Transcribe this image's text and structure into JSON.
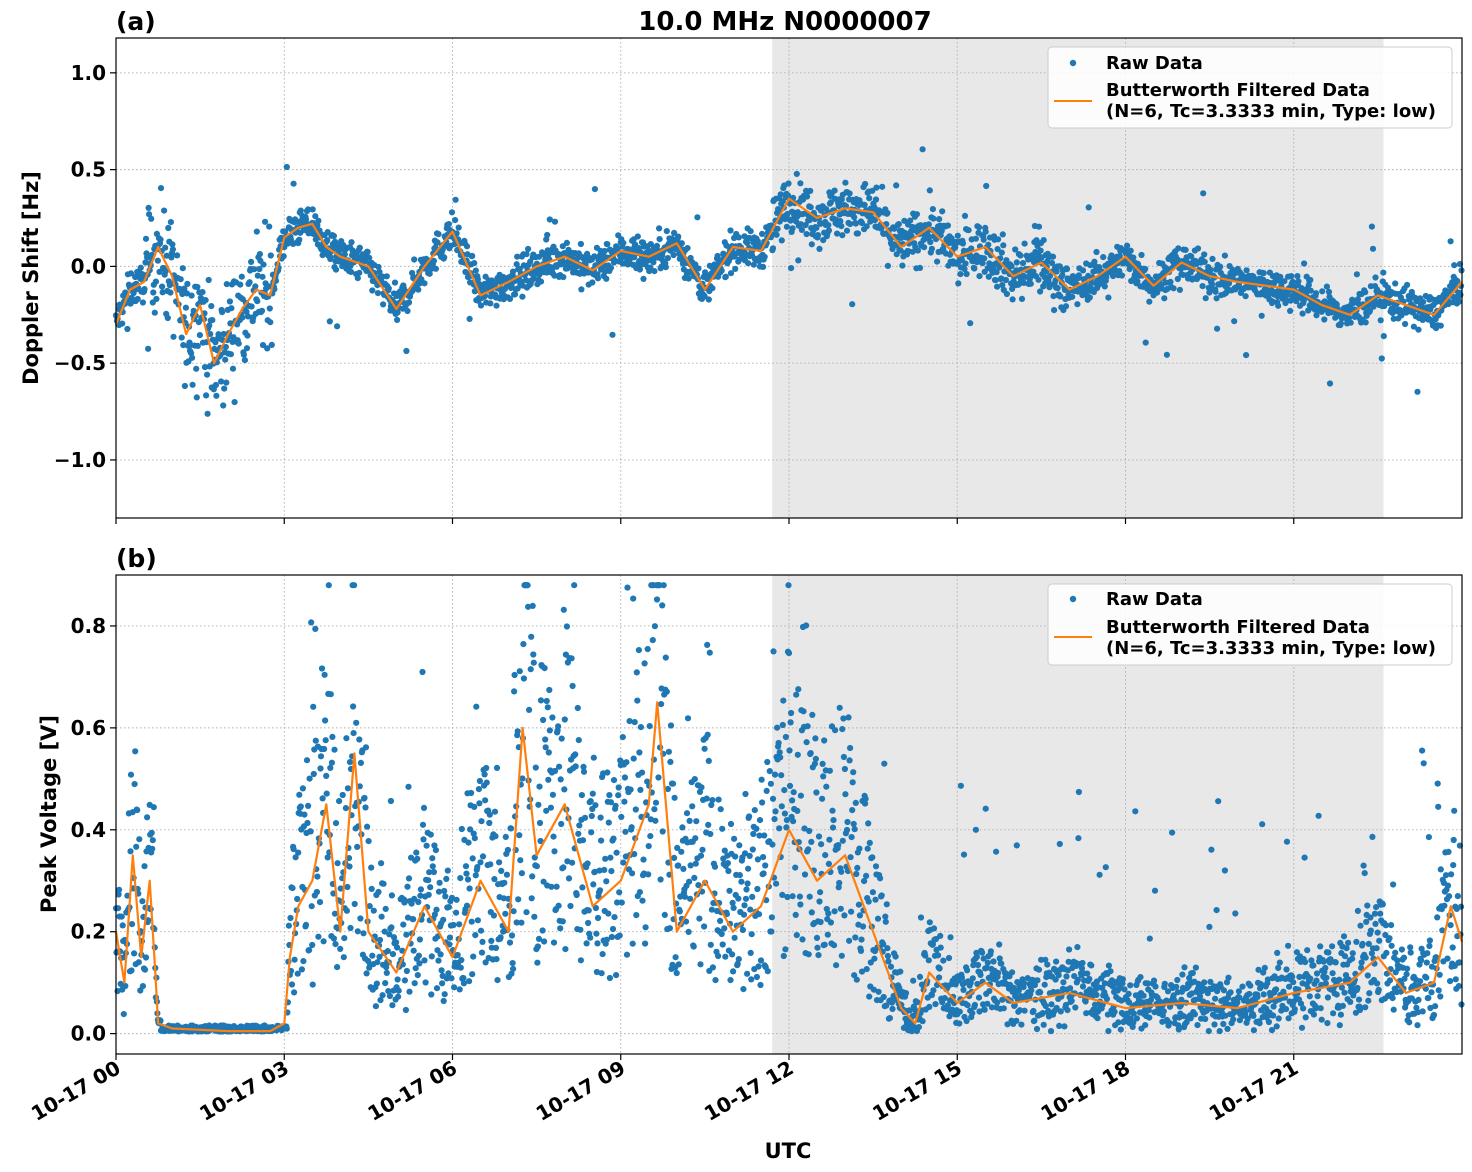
{
  "figure": {
    "title": "10.0 MHz N0000007",
    "xlabel": "UTC",
    "x_tick_labels": [
      "10-17 00",
      "10-17 03",
      "10-17 06",
      "10-17 09",
      "10-17 12",
      "10-17 15",
      "10-17 18",
      "10-17 21"
    ],
    "colors": {
      "raw": "#1f77b4",
      "filtered": "#ff7f0e",
      "shade": "#e8e8e8"
    }
  },
  "chart_data": [
    {
      "type": "scatter",
      "panel_label": "(a)",
      "ylabel": "Doppler Shift [Hz]",
      "xlim_hours": [
        0,
        24
      ],
      "ylim": [
        -1.3,
        1.18
      ],
      "y_ticks": [
        1.0,
        0.5,
        0.0,
        -0.5,
        -1.0
      ],
      "y_tick_labels": [
        "1.0",
        "0.5",
        "0.0",
        "−0.5",
        "−1.0"
      ],
      "shaded_span_hours": [
        11.7,
        22.6
      ],
      "grid": true,
      "legend_position": "top-right",
      "legend": {
        "raw_label": "Raw Data",
        "filtered_label_line1": "Butterworth Filtered Data",
        "filtered_label_line2": "(N=6, Tc=3.3333 min, Type: low)"
      },
      "series": [
        {
          "name": "Butterworth Filtered Data",
          "x_hours": [
            0,
            0.25,
            0.5,
            0.75,
            1.0,
            1.25,
            1.5,
            1.75,
            2.0,
            2.25,
            2.5,
            2.75,
            3.0,
            3.25,
            3.5,
            3.75,
            4.0,
            4.5,
            5.0,
            5.5,
            6.0,
            6.5,
            7.0,
            7.5,
            8.0,
            8.5,
            9.0,
            9.5,
            10.0,
            10.5,
            11.0,
            11.5,
            12.0,
            12.5,
            13.0,
            13.5,
            14.0,
            14.5,
            15.0,
            15.5,
            16.0,
            16.5,
            17.0,
            17.5,
            18.0,
            18.5,
            19.0,
            19.5,
            20.0,
            20.5,
            21.0,
            21.5,
            22.0,
            22.5,
            23.0,
            23.5,
            24.0
          ],
          "y": [
            -0.3,
            -0.12,
            -0.08,
            0.1,
            -0.05,
            -0.35,
            -0.2,
            -0.5,
            -0.35,
            -0.22,
            -0.12,
            -0.15,
            0.15,
            0.2,
            0.22,
            0.1,
            0.05,
            0.0,
            -0.22,
            0.0,
            0.18,
            -0.15,
            -0.08,
            0.0,
            0.05,
            -0.02,
            0.08,
            0.05,
            0.12,
            -0.12,
            0.1,
            0.08,
            0.35,
            0.25,
            0.3,
            0.28,
            0.1,
            0.2,
            0.05,
            0.1,
            -0.05,
            0.02,
            -0.12,
            -0.05,
            0.05,
            -0.1,
            0.02,
            -0.05,
            -0.08,
            -0.1,
            -0.12,
            -0.2,
            -0.25,
            -0.15,
            -0.2,
            -0.25,
            -0.08
          ]
        }
      ]
    },
    {
      "type": "scatter",
      "panel_label": "(b)",
      "ylabel": "Peak Voltage [V]",
      "xlim_hours": [
        0,
        24
      ],
      "ylim": [
        -0.04,
        0.9
      ],
      "y_ticks": [
        0.0,
        0.2,
        0.4,
        0.6,
        0.8
      ],
      "y_tick_labels": [
        "0.0",
        "0.2",
        "0.4",
        "0.6",
        "0.8"
      ],
      "shaded_span_hours": [
        11.7,
        22.6
      ],
      "grid": true,
      "legend_position": "top-right",
      "legend": {
        "raw_label": "Raw Data",
        "filtered_label_line1": "Butterworth Filtered Data",
        "filtered_label_line2": "(N=6, Tc=3.3333 min, Type: low)"
      },
      "series": [
        {
          "name": "Butterworth Filtered Data",
          "x_hours": [
            0,
            0.15,
            0.3,
            0.45,
            0.6,
            0.7,
            0.75,
            1.0,
            2.0,
            2.75,
            3.0,
            3.1,
            3.25,
            3.5,
            3.75,
            4.0,
            4.25,
            4.5,
            5.0,
            5.5,
            6.0,
            6.5,
            7.0,
            7.25,
            7.5,
            8.0,
            8.5,
            9.0,
            9.5,
            9.65,
            10.0,
            10.5,
            11.0,
            11.5,
            12.0,
            12.5,
            13.0,
            13.5,
            14.0,
            14.25,
            14.5,
            15.0,
            15.5,
            16.0,
            17.0,
            18.0,
            19.0,
            20.0,
            21.0,
            22.0,
            22.5,
            23.0,
            23.5,
            23.8,
            24.0
          ],
          "y": [
            0.2,
            0.1,
            0.35,
            0.15,
            0.3,
            0.12,
            0.02,
            0.01,
            0.005,
            0.005,
            0.02,
            0.15,
            0.25,
            0.3,
            0.45,
            0.2,
            0.55,
            0.2,
            0.12,
            0.25,
            0.15,
            0.3,
            0.2,
            0.6,
            0.35,
            0.45,
            0.25,
            0.3,
            0.45,
            0.65,
            0.2,
            0.3,
            0.2,
            0.25,
            0.4,
            0.3,
            0.35,
            0.2,
            0.05,
            0.02,
            0.12,
            0.06,
            0.1,
            0.06,
            0.08,
            0.05,
            0.06,
            0.05,
            0.08,
            0.1,
            0.15,
            0.08,
            0.1,
            0.25,
            0.18
          ]
        }
      ]
    }
  ]
}
